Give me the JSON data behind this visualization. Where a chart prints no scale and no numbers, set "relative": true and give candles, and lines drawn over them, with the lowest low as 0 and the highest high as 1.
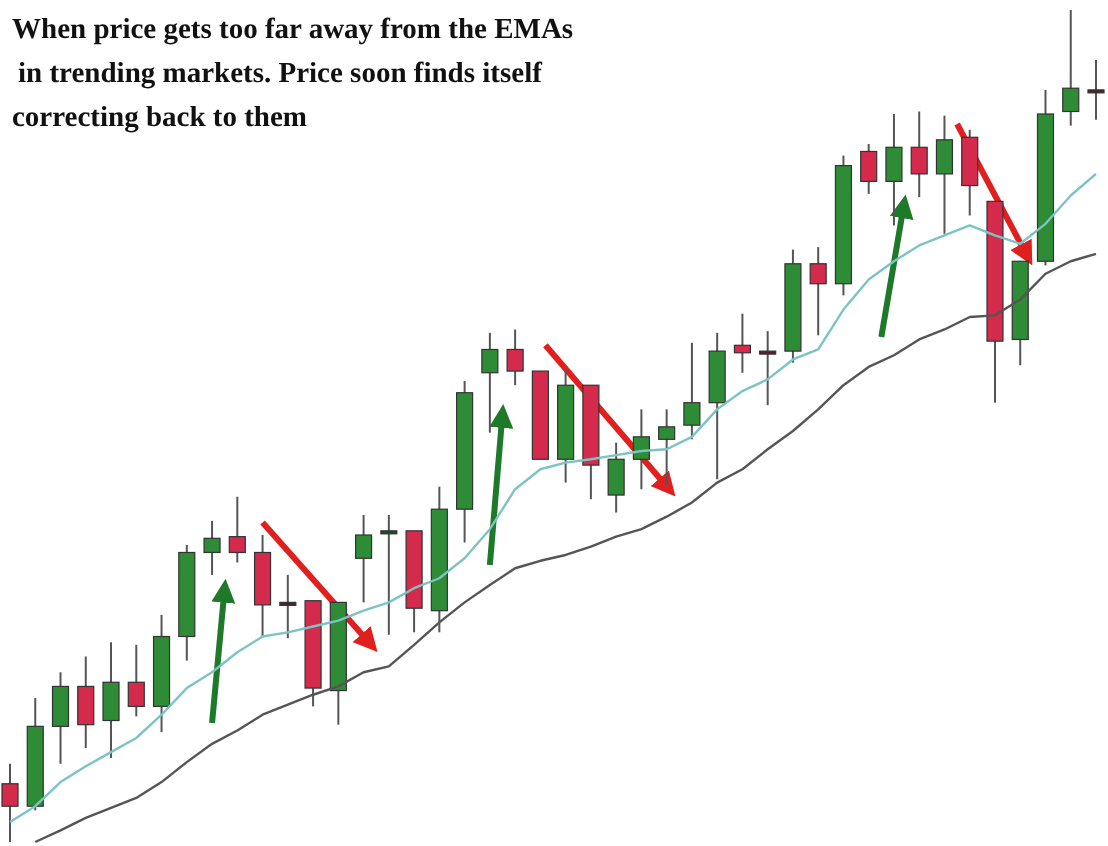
{
  "chart_data": {
    "type": "candlestick",
    "title": "When price gets too far away from the EMAs in trending markets. Price soon finds itself correcting back to them",
    "relative": true,
    "categories": [
      null,
      null,
      null,
      null,
      null,
      null,
      null,
      null,
      null,
      null,
      null,
      null,
      null,
      null,
      null,
      null,
      null,
      null,
      null,
      null,
      null,
      null,
      null,
      null,
      null,
      null,
      null,
      null,
      null,
      null,
      null,
      null,
      null,
      null,
      null,
      null,
      null,
      null,
      null,
      null,
      null,
      null,
      null,
      null
    ],
    "ohlc": [
      [
        0.07,
        0.094,
        0,
        0.043
      ],
      [
        0.043,
        0.173,
        0.038,
        0.139
      ],
      [
        0.139,
        0.204,
        0.094,
        0.187
      ],
      [
        0.187,
        0.223,
        0.113,
        0.141
      ],
      [
        0.146,
        0.24,
        0.101,
        0.192
      ],
      [
        0.192,
        0.237,
        0.151,
        0.163
      ],
      [
        0.163,
        0.273,
        0.132,
        0.247
      ],
      [
        0.247,
        0.357,
        0.218,
        0.348
      ],
      [
        0.348,
        0.386,
        0.321,
        0.365
      ],
      [
        0.367,
        0.415,
        0.336,
        0.348
      ],
      [
        0.348,
        0.369,
        0.247,
        0.285
      ],
      [
        0.288,
        0.321,
        0.245,
        0.288
      ],
      [
        0.29,
        0.29,
        0.163,
        0.185
      ],
      [
        0.182,
        0.288,
        0.141,
        0.288
      ],
      [
        0.341,
        0.393,
        0.288,
        0.369
      ],
      [
        0.374,
        0.393,
        0.249,
        0.374
      ],
      [
        0.374,
        0.374,
        0.252,
        0.281
      ],
      [
        0.278,
        0.427,
        0.252,
        0.4
      ],
      [
        0.4,
        0.554,
        0.36,
        0.54
      ],
      [
        0.564,
        0.612,
        0.492,
        0.592
      ],
      [
        0.592,
        0.616,
        0.549,
        0.566
      ],
      [
        0.566,
        0.566,
        0.46,
        0.46
      ],
      [
        0.46,
        0.568,
        0.432,
        0.549
      ],
      [
        0.549,
        0.549,
        0.412,
        0.453
      ],
      [
        0.417,
        0.48,
        0.396,
        0.46
      ],
      [
        0.46,
        0.52,
        0.424,
        0.487
      ],
      [
        0.484,
        0.52,
        0.429,
        0.499
      ],
      [
        0.501,
        0.6,
        0.484,
        0.528
      ],
      [
        0.528,
        0.612,
        0.436,
        0.59
      ],
      [
        0.597,
        0.635,
        0.564,
        0.588
      ],
      [
        0.59,
        0.614,
        0.525,
        0.59
      ],
      [
        0.59,
        0.712,
        0.576,
        0.695
      ],
      [
        0.695,
        0.715,
        0.609,
        0.671
      ],
      [
        0.671,
        0.825,
        0.657,
        0.813
      ],
      [
        0.83,
        0.839,
        0.779,
        0.794
      ],
      [
        0.794,
        0.875,
        0.741,
        0.835
      ],
      [
        0.835,
        0.878,
        0.775,
        0.803
      ],
      [
        0.803,
        0.873,
        0.731,
        0.844
      ],
      [
        0.847,
        0.856,
        0.753,
        0.789
      ],
      [
        0.77,
        0.77,
        0.528,
        0.602
      ],
      [
        0.604,
        0.698,
        0.573,
        0.698
      ],
      [
        0.698,
        0.904,
        0.693,
        0.875
      ],
      [
        0.878,
        1,
        0.861,
        0.906
      ],
      [
        0.904,
        0.94,
        0.868,
        0.904
      ]
    ],
    "colors": [
      "#d42a4c",
      "#2e8b36",
      "#2e8b36",
      "#d42a4c",
      "#2e8b36",
      "#d42a4c",
      "#2e8b36",
      "#2e8b36",
      "#2e8b36",
      "#d42a4c",
      "#d42a4c",
      "#5a1e2a",
      "#d42a4c",
      "#2e8b36",
      "#2e8b36",
      "#1e4a22",
      "#d42a4c",
      "#2e8b36",
      "#2e8b36",
      "#2e8b36",
      "#d42a4c",
      "#d42a4c",
      "#2e8b36",
      "#d42a4c",
      "#2e8b36",
      "#2e8b36",
      "#2e8b36",
      "#2e8b36",
      "#2e8b36",
      "#d42a4c",
      "#5a1e2a",
      "#2e8b36",
      "#d42a4c",
      "#2e8b36",
      "#d42a4c",
      "#2e8b36",
      "#d42a4c",
      "#2e8b36",
      "#d42a4c",
      "#d42a4c",
      "#2e8b36",
      "#2e8b36",
      "#2e8b36",
      "#5a1e2a"
    ],
    "series": [
      {
        "type": "line",
        "color": "#7cc4c4",
        "values": [
          0.024,
          0.043,
          0.072,
          0.091,
          0.108,
          0.125,
          0.153,
          0.185,
          0.204,
          0.228,
          0.247,
          0.252,
          0.259,
          0.266,
          0.278,
          0.288,
          0.305,
          0.317,
          0.341,
          0.376,
          0.424,
          0.448,
          0.456,
          0.46,
          0.465,
          0.47,
          0.472,
          0.487,
          0.52,
          0.542,
          0.556,
          0.58,
          0.592,
          0.64,
          0.676,
          0.698,
          0.717,
          0.729,
          0.741,
          0.729,
          0.719,
          0.743,
          0.777,
          0.803
        ]
      },
      {
        "type": "line",
        "color": "#555555",
        "values": [
          null,
          0,
          0.014,
          0.029,
          0.041,
          0.053,
          0.072,
          0.096,
          0.118,
          0.134,
          0.153,
          0.165,
          0.177,
          0.187,
          0.204,
          0.211,
          0.237,
          0.264,
          0.288,
          0.309,
          0.329,
          0.338,
          0.345,
          0.355,
          0.367,
          0.376,
          0.391,
          0.408,
          0.432,
          0.448,
          0.472,
          0.494,
          0.52,
          0.549,
          0.571,
          0.585,
          0.604,
          0.616,
          0.631,
          0.633,
          0.652,
          0.683,
          0.698,
          0.707
        ]
      }
    ]
  }
}
